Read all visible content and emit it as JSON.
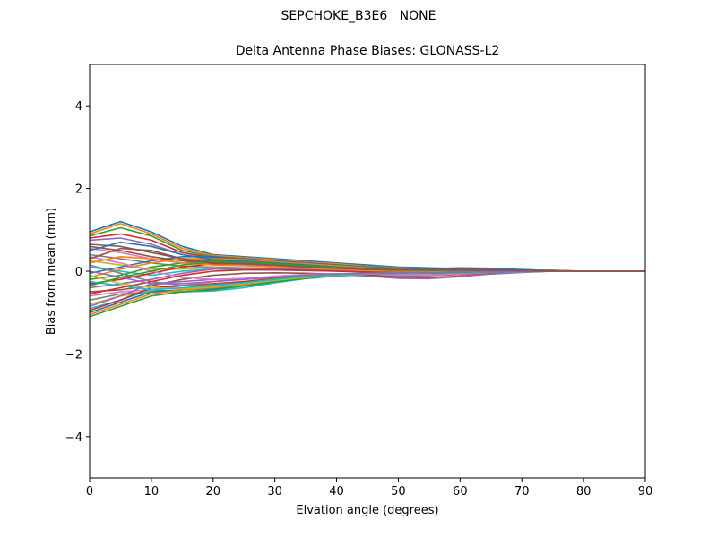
{
  "suptitle": "SEPCHOKE_B3E6   NONE",
  "colors": [
    "#1f77b4",
    "#ff7f0e",
    "#2ca02c",
    "#d62728",
    "#9467bd",
    "#8c564b",
    "#e377c2",
    "#7f7f7f",
    "#bcbd22",
    "#17becf"
  ],
  "chart_data": {
    "type": "line",
    "title": "Delta Antenna Phase Biases: GLONASS-L2",
    "xlabel": "Elvation angle (degrees)",
    "ylabel": "Bias from mean (mm)",
    "xlim": [
      0,
      90
    ],
    "ylim": [
      -5,
      5
    ],
    "xticks": [
      0,
      10,
      20,
      30,
      40,
      50,
      60,
      70,
      80,
      90
    ],
    "yticks": [
      -4,
      -2,
      0,
      2,
      4
    ],
    "x": [
      0,
      5,
      10,
      15,
      20,
      25,
      30,
      35,
      40,
      45,
      50,
      55,
      60,
      65,
      70,
      75,
      80,
      85,
      90
    ],
    "grid": false,
    "legend": "none",
    "series": [
      {
        "values": [
          0.95,
          1.2,
          0.95,
          0.6,
          0.4,
          0.35,
          0.3,
          0.25,
          0.2,
          0.15,
          0.1,
          0.08,
          0.06,
          0.04,
          0.03,
          0.02,
          0,
          0,
          0
        ]
      },
      {
        "values": [
          0.9,
          1.15,
          0.9,
          0.55,
          0.38,
          0.33,
          0.28,
          0.22,
          0.18,
          0.12,
          0.08,
          0.06,
          0.05,
          0.04,
          0.03,
          0.02,
          0,
          0,
          0
        ]
      },
      {
        "values": [
          0.85,
          1.05,
          0.85,
          0.5,
          0.35,
          0.3,
          0.25,
          0.2,
          0.15,
          0.1,
          0.06,
          0.05,
          0.04,
          0.03,
          0.02,
          0.01,
          0,
          0,
          0
        ]
      },
      {
        "values": [
          0.8,
          0.9,
          0.75,
          0.45,
          0.32,
          0.28,
          0.22,
          0.18,
          0.13,
          0.08,
          0.05,
          0.04,
          0.03,
          0.02,
          0.01,
          0.01,
          0,
          0,
          0
        ]
      },
      {
        "values": [
          0.75,
          0.8,
          0.65,
          0.4,
          0.3,
          0.26,
          0.2,
          0.15,
          0.1,
          0.06,
          0.04,
          0.03,
          0.02,
          0.02,
          0.01,
          0,
          0,
          0,
          0
        ]
      },
      {
        "values": [
          0.65,
          0.6,
          0.45,
          0.3,
          0.25,
          0.22,
          0.18,
          0.12,
          0.08,
          0.05,
          0.03,
          0.02,
          0.02,
          0.01,
          0.01,
          0,
          0,
          0,
          0
        ]
      },
      {
        "values": [
          0.55,
          0.45,
          0.3,
          0.2,
          0.18,
          0.16,
          0.12,
          0.08,
          0.05,
          0.03,
          0.02,
          0.01,
          0.01,
          0.01,
          0,
          0,
          0,
          0,
          0
        ]
      },
      {
        "values": [
          0.4,
          0.3,
          0.2,
          0.12,
          0.1,
          0.08,
          0.06,
          0.04,
          0.02,
          0.01,
          0,
          0,
          0,
          0,
          0,
          0,
          0,
          0,
          0
        ]
      },
      {
        "values": [
          0.25,
          0.15,
          0.05,
          0.05,
          0.08,
          0.06,
          0.04,
          0.02,
          0.01,
          0,
          -0.02,
          -0.02,
          -0.01,
          0,
          0,
          0,
          0,
          0,
          0
        ]
      },
      {
        "values": [
          0.1,
          0.0,
          -0.1,
          0.0,
          0.05,
          0.05,
          0.03,
          0.01,
          0,
          -0.03,
          -0.05,
          -0.05,
          -0.03,
          -0.01,
          0,
          0,
          0,
          0,
          0
        ]
      },
      {
        "values": [
          -0.05,
          0.1,
          0.25,
          0.35,
          0.35,
          0.3,
          0.25,
          0.2,
          0.15,
          0.1,
          0.07,
          0.05,
          0.04,
          0.03,
          0.02,
          0.01,
          0,
          0,
          0
        ]
      },
      {
        "values": [
          -0.15,
          0.05,
          0.2,
          0.3,
          0.3,
          0.28,
          0.23,
          0.18,
          0.13,
          0.08,
          0.05,
          0.04,
          0.03,
          0.02,
          0.01,
          0,
          0,
          0,
          0
        ]
      },
      {
        "values": [
          -0.2,
          -0.1,
          0.1,
          0.2,
          0.25,
          0.24,
          0.2,
          0.15,
          0.1,
          0.06,
          0.04,
          0.03,
          0.02,
          0.02,
          0.01,
          0,
          0,
          0,
          0
        ]
      },
      {
        "values": [
          -0.3,
          -0.2,
          -0.05,
          0.1,
          0.18,
          0.18,
          0.15,
          0.1,
          0.06,
          0.03,
          0.02,
          0.02,
          0.01,
          0.01,
          0,
          0,
          0,
          0,
          0
        ]
      },
      {
        "values": [
          -0.4,
          -0.3,
          -0.2,
          -0.05,
          0.05,
          0.08,
          0.06,
          0.03,
          0.01,
          -0.02,
          -0.04,
          -0.04,
          -0.03,
          -0.01,
          0,
          0,
          0,
          0,
          0
        ]
      },
      {
        "values": [
          -0.5,
          -0.45,
          -0.35,
          -0.2,
          -0.1,
          -0.05,
          -0.04,
          -0.05,
          -0.07,
          -0.1,
          -0.12,
          -0.11,
          -0.08,
          -0.04,
          -0.02,
          0,
          0,
          0,
          0
        ]
      },
      {
        "values": [
          -0.6,
          -0.5,
          -0.45,
          -0.35,
          -0.25,
          -0.18,
          -0.12,
          -0.08,
          -0.06,
          -0.08,
          -0.1,
          -0.1,
          -0.07,
          -0.04,
          -0.02,
          0,
          0,
          0,
          0
        ]
      },
      {
        "values": [
          -0.7,
          -0.55,
          -0.5,
          -0.45,
          -0.38,
          -0.3,
          -0.22,
          -0.14,
          -0.08,
          -0.06,
          -0.06,
          -0.06,
          -0.05,
          -0.03,
          -0.01,
          0,
          0,
          0,
          0
        ]
      },
      {
        "values": [
          -0.8,
          -0.6,
          -0.5,
          -0.5,
          -0.45,
          -0.35,
          -0.25,
          -0.16,
          -0.1,
          -0.07,
          -0.06,
          -0.05,
          -0.04,
          -0.03,
          -0.01,
          0,
          0,
          0,
          0
        ]
      },
      {
        "values": [
          -0.9,
          -0.7,
          -0.45,
          -0.5,
          -0.48,
          -0.4,
          -0.28,
          -0.18,
          -0.12,
          -0.08,
          -0.06,
          -0.05,
          -0.04,
          -0.02,
          -0.01,
          0,
          0,
          0,
          0
        ]
      },
      {
        "values": [
          -1.0,
          -0.75,
          -0.5,
          -0.45,
          -0.42,
          -0.35,
          -0.25,
          -0.15,
          -0.1,
          -0.07,
          -0.05,
          -0.04,
          -0.03,
          -0.02,
          -0.01,
          0,
          0,
          0,
          0
        ]
      },
      {
        "values": [
          -1.05,
          -0.8,
          -0.55,
          -0.45,
          -0.4,
          -0.32,
          -0.22,
          -0.14,
          -0.09,
          -0.06,
          -0.05,
          -0.04,
          -0.03,
          -0.02,
          -0.01,
          0,
          0,
          0,
          0
        ]
      },
      {
        "values": [
          -1.1,
          -0.85,
          -0.6,
          -0.5,
          -0.45,
          -0.36,
          -0.26,
          -0.17,
          -0.11,
          -0.08,
          -0.06,
          -0.05,
          -0.04,
          -0.02,
          -0.01,
          0,
          0,
          0,
          0
        ]
      },
      {
        "values": [
          -0.95,
          -0.7,
          -0.4,
          -0.35,
          -0.3,
          -0.25,
          -0.18,
          -0.12,
          -0.08,
          -0.1,
          -0.15,
          -0.16,
          -0.12,
          -0.06,
          -0.02,
          0,
          0,
          0,
          0
        ]
      },
      {
        "values": [
          -0.85,
          -0.6,
          -0.3,
          -0.25,
          -0.2,
          -0.18,
          -0.14,
          -0.1,
          -0.08,
          -0.12,
          -0.17,
          -0.18,
          -0.13,
          -0.07,
          -0.03,
          0,
          0,
          0,
          0
        ]
      },
      {
        "values": [
          0.6,
          0.5,
          0.35,
          0.25,
          0.22,
          0.2,
          0.16,
          0.12,
          0.08,
          0.05,
          0.04,
          0.05,
          0.06,
          0.05,
          0.03,
          0.01,
          0,
          0,
          0
        ]
      },
      {
        "values": [
          0.35,
          0.2,
          0.0,
          -0.15,
          -0.2,
          -0.18,
          -0.14,
          -0.1,
          -0.08,
          -0.06,
          -0.05,
          -0.04,
          -0.03,
          -0.02,
          -0.01,
          0,
          0,
          0,
          0
        ]
      },
      {
        "values": [
          0.15,
          -0.05,
          -0.25,
          -0.35,
          -0.32,
          -0.28,
          -0.2,
          -0.14,
          -0.1,
          -0.07,
          -0.05,
          -0.04,
          -0.03,
          -0.02,
          -0.01,
          0,
          0,
          0,
          0
        ]
      },
      {
        "values": [
          -0.1,
          -0.3,
          -0.4,
          -0.42,
          -0.38,
          -0.3,
          -0.22,
          -0.15,
          -0.1,
          -0.07,
          -0.05,
          -0.04,
          -0.03,
          -0.02,
          -0.01,
          0,
          0,
          0,
          0
        ]
      },
      {
        "values": [
          -0.25,
          -0.35,
          -0.45,
          -0.4,
          -0.35,
          -0.28,
          -0.2,
          -0.13,
          -0.09,
          -0.06,
          -0.05,
          -0.04,
          -0.03,
          -0.02,
          -0.01,
          0,
          0,
          0,
          0
        ]
      },
      {
        "values": [
          0.5,
          0.7,
          0.6,
          0.4,
          0.28,
          0.24,
          0.2,
          0.15,
          0.1,
          0.06,
          0.04,
          0.06,
          0.08,
          0.07,
          0.04,
          0.01,
          0,
          0,
          0
        ]
      },
      {
        "values": [
          0.2,
          0.35,
          0.3,
          0.2,
          0.15,
          0.13,
          0.1,
          0.07,
          0.05,
          0.03,
          0.02,
          0.02,
          0.02,
          0.01,
          0,
          0,
          0,
          0,
          0
        ]
      },
      {
        "values": [
          -0.35,
          -0.15,
          0.0,
          0.15,
          0.22,
          0.22,
          0.18,
          0.13,
          0.09,
          0.05,
          0.03,
          0.02,
          0.02,
          0.01,
          0,
          0,
          0,
          0,
          0
        ]
      },
      {
        "values": [
          -0.55,
          -0.4,
          -0.25,
          -0.1,
          0.0,
          0.03,
          0.03,
          0.02,
          0.0,
          -0.02,
          -0.03,
          -0.03,
          -0.02,
          -0.01,
          0,
          0,
          0,
          0,
          0
        ]
      },
      {
        "values": [
          0.0,
          -0.15,
          -0.3,
          -0.3,
          -0.25,
          -0.2,
          -0.15,
          -0.1,
          -0.07,
          -0.05,
          -0.04,
          -0.03,
          -0.02,
          -0.01,
          0,
          0,
          0,
          0,
          0
        ]
      },
      {
        "values": [
          0.3,
          0.55,
          0.5,
          0.3,
          0.2,
          0.17,
          0.14,
          0.1,
          0.07,
          0.04,
          0.03,
          0.03,
          0.03,
          0.02,
          0.01,
          0,
          0,
          0,
          0
        ]
      }
    ]
  }
}
